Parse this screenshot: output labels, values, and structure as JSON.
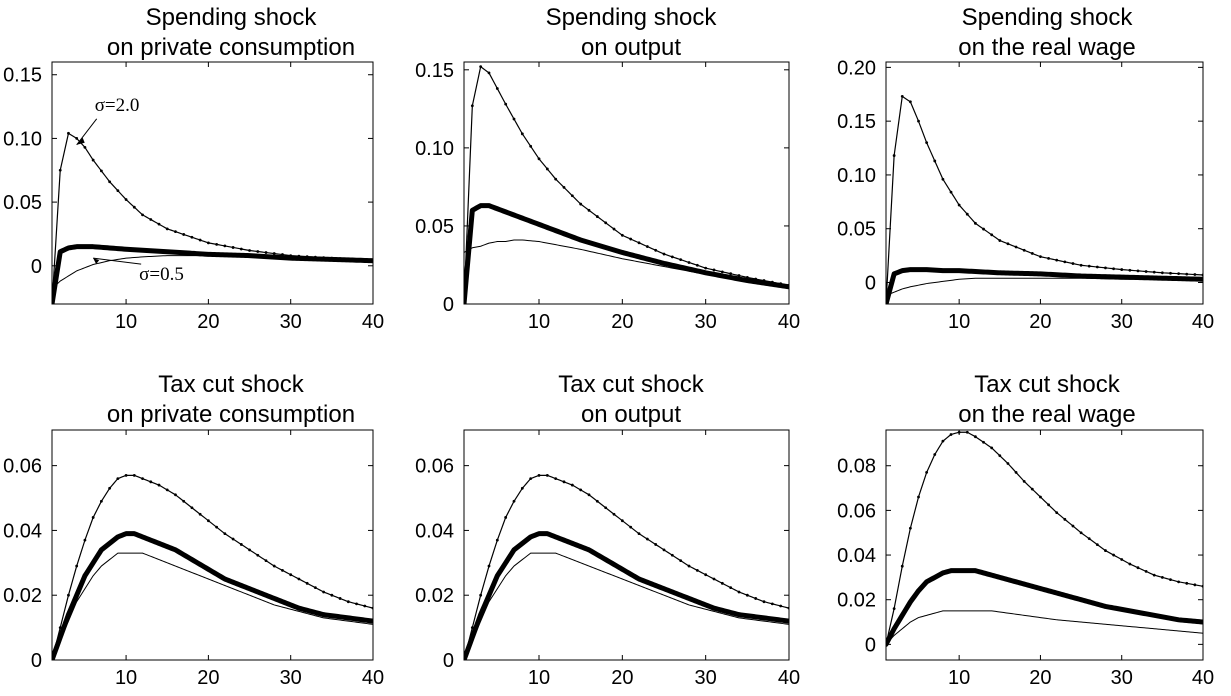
{
  "figure": {
    "line_color": "#000000",
    "background": "#ffffff"
  },
  "chart_data": [
    {
      "type": "line",
      "title_line1": "Spending shock",
      "title_line2": "on private consumption",
      "xlabel": "",
      "ylabel": "",
      "xlim": [
        1,
        40
      ],
      "ylim": [
        -0.03,
        0.16
      ],
      "xticks": [
        10,
        20,
        30,
        40
      ],
      "xtick_labels": [
        "10",
        "20",
        "30",
        "40"
      ],
      "yticks": [
        0,
        0.05,
        0.1,
        0.15
      ],
      "ytick_labels": [
        "0",
        "0.05",
        "0.10",
        "0.15"
      ],
      "grid": false,
      "annotations": [
        {
          "text": "σ=2.0",
          "series": "dotted",
          "x": 4,
          "y": 0.095
        },
        {
          "text": "σ=0.5",
          "series": "thin",
          "x": 6,
          "y": 0.006
        }
      ],
      "series": [
        {
          "style": "dotted",
          "x": [
            1,
            2,
            3,
            4,
            5,
            6,
            8,
            10,
            12,
            15,
            20,
            25,
            30,
            35,
            40
          ],
          "y": [
            -0.03,
            0.075,
            0.104,
            0.1,
            0.093,
            0.083,
            0.066,
            0.052,
            0.04,
            0.029,
            0.018,
            0.012,
            0.008,
            0.006,
            0.004
          ]
        },
        {
          "style": "thick",
          "x": [
            1,
            2,
            3,
            4,
            5,
            6,
            8,
            10,
            15,
            20,
            25,
            30,
            35,
            40
          ],
          "y": [
            -0.03,
            0.011,
            0.014,
            0.015,
            0.015,
            0.015,
            0.014,
            0.013,
            0.011,
            0.009,
            0.008,
            0.006,
            0.005,
            0.004
          ]
        },
        {
          "style": "thin",
          "x": [
            1,
            2,
            4,
            6,
            8,
            10,
            12,
            15,
            20,
            25,
            30,
            35,
            40
          ],
          "y": [
            -0.018,
            -0.012,
            -0.004,
            0.001,
            0.004,
            0.006,
            0.007,
            0.008,
            0.008,
            0.007,
            0.006,
            0.005,
            0.004
          ]
        }
      ]
    },
    {
      "type": "line",
      "title_line1": "Spending shock",
      "title_line2": "on output",
      "xlabel": "",
      "ylabel": "",
      "xlim": [
        1,
        40
      ],
      "ylim": [
        0,
        0.155
      ],
      "xticks": [
        10,
        20,
        30,
        40
      ],
      "xtick_labels": [
        "10",
        "20",
        "30",
        "40"
      ],
      "yticks": [
        0,
        0.05,
        0.1,
        0.15
      ],
      "ytick_labels": [
        "0",
        "0.05",
        "0.10",
        "0.15"
      ],
      "grid": false,
      "annotations": [],
      "series": [
        {
          "style": "dotted",
          "x": [
            1,
            2,
            3,
            4,
            5,
            6,
            8,
            10,
            12,
            15,
            20,
            25,
            30,
            35,
            40
          ],
          "y": [
            0,
            0.127,
            0.152,
            0.148,
            0.138,
            0.128,
            0.109,
            0.093,
            0.08,
            0.064,
            0.044,
            0.032,
            0.023,
            0.017,
            0.012
          ]
        },
        {
          "style": "thick",
          "x": [
            1,
            2,
            3,
            4,
            5,
            6,
            8,
            10,
            12,
            15,
            20,
            25,
            30,
            35,
            40
          ],
          "y": [
            0,
            0.06,
            0.063,
            0.063,
            0.061,
            0.059,
            0.055,
            0.051,
            0.047,
            0.041,
            0.033,
            0.026,
            0.02,
            0.015,
            0.011
          ]
        },
        {
          "style": "thin",
          "x": [
            1,
            2,
            3,
            4,
            5,
            6,
            7,
            8,
            10,
            12,
            15,
            20,
            25,
            30,
            35,
            40
          ],
          "y": [
            0.033,
            0.036,
            0.037,
            0.039,
            0.04,
            0.04,
            0.041,
            0.041,
            0.04,
            0.038,
            0.035,
            0.029,
            0.024,
            0.019,
            0.015,
            0.012
          ]
        }
      ]
    },
    {
      "type": "line",
      "title_line1": "Spending shock",
      "title_line2": "on the real wage",
      "xlabel": "",
      "ylabel": "",
      "xlim": [
        1,
        40
      ],
      "ylim": [
        -0.02,
        0.205
      ],
      "xticks": [
        10,
        20,
        30,
        40
      ],
      "xtick_labels": [
        "10",
        "20",
        "30",
        "40"
      ],
      "yticks": [
        0,
        0.05,
        0.1,
        0.15,
        0.2
      ],
      "ytick_labels": [
        "0",
        "0.05",
        "0.10",
        "0.15",
        "0.20"
      ],
      "grid": false,
      "annotations": [],
      "series": [
        {
          "style": "dotted",
          "x": [
            1,
            2,
            3,
            4,
            5,
            6,
            8,
            10,
            12,
            15,
            20,
            25,
            30,
            35,
            40
          ],
          "y": [
            -0.02,
            0.118,
            0.173,
            0.168,
            0.15,
            0.13,
            0.096,
            0.072,
            0.055,
            0.039,
            0.024,
            0.016,
            0.012,
            0.009,
            0.007
          ]
        },
        {
          "style": "thick",
          "x": [
            1,
            2,
            3,
            4,
            5,
            6,
            8,
            10,
            15,
            20,
            25,
            30,
            35,
            40
          ],
          "y": [
            -0.02,
            0.008,
            0.011,
            0.012,
            0.012,
            0.012,
            0.011,
            0.011,
            0.009,
            0.008,
            0.006,
            0.005,
            0.004,
            0.003
          ]
        },
        {
          "style": "thin",
          "x": [
            1,
            2,
            3,
            4,
            6,
            8,
            10,
            12,
            15,
            20,
            25,
            30,
            35,
            40
          ],
          "y": [
            -0.012,
            -0.009,
            -0.006,
            -0.004,
            -0.001,
            0.001,
            0.003,
            0.004,
            0.004,
            0.004,
            0.004,
            0.003,
            0.003,
            0.002
          ]
        }
      ]
    },
    {
      "type": "line",
      "title_line1": "Tax cut shock",
      "title_line2": "on private consumption",
      "xlabel": "",
      "ylabel": "",
      "xlim": [
        1,
        40
      ],
      "ylim": [
        0,
        0.071
      ],
      "xticks": [
        10,
        20,
        30,
        40
      ],
      "xtick_labels": [
        "10",
        "20",
        "30",
        "40"
      ],
      "yticks": [
        0,
        0.02,
        0.04,
        0.06
      ],
      "ytick_labels": [
        "0",
        "0.02",
        "0.04",
        "0.06"
      ],
      "grid": false,
      "annotations": [],
      "series": [
        {
          "style": "dotted",
          "x": [
            1,
            2,
            3,
            4,
            5,
            6,
            7,
            8,
            9,
            10,
            11,
            12,
            14,
            16,
            18,
            20,
            22,
            25,
            28,
            31,
            34,
            37,
            40
          ],
          "y": [
            0,
            0.01,
            0.02,
            0.029,
            0.037,
            0.044,
            0.049,
            0.053,
            0.056,
            0.057,
            0.057,
            0.056,
            0.054,
            0.051,
            0.047,
            0.043,
            0.039,
            0.034,
            0.029,
            0.025,
            0.021,
            0.018,
            0.016
          ]
        },
        {
          "style": "thick",
          "x": [
            1,
            2,
            3,
            4,
            5,
            6,
            7,
            8,
            9,
            10,
            11,
            12,
            14,
            16,
            18,
            20,
            22,
            25,
            28,
            31,
            34,
            37,
            40
          ],
          "y": [
            0,
            0.007,
            0.014,
            0.02,
            0.026,
            0.03,
            0.034,
            0.036,
            0.038,
            0.039,
            0.039,
            0.038,
            0.036,
            0.034,
            0.031,
            0.028,
            0.025,
            0.022,
            0.019,
            0.016,
            0.014,
            0.013,
            0.012
          ]
        },
        {
          "style": "thin",
          "x": [
            1,
            2,
            3,
            4,
            5,
            6,
            7,
            8,
            9,
            10,
            11,
            12,
            14,
            16,
            18,
            20,
            22,
            25,
            28,
            31,
            34,
            37,
            40
          ],
          "y": [
            0,
            0.006,
            0.012,
            0.018,
            0.022,
            0.026,
            0.029,
            0.031,
            0.033,
            0.033,
            0.033,
            0.033,
            0.031,
            0.029,
            0.027,
            0.025,
            0.023,
            0.02,
            0.017,
            0.015,
            0.013,
            0.012,
            0.011
          ]
        }
      ]
    },
    {
      "type": "line",
      "title_line1": "Tax cut shock",
      "title_line2": "on output",
      "xlabel": "",
      "ylabel": "",
      "xlim": [
        1,
        40
      ],
      "ylim": [
        0,
        0.071
      ],
      "xticks": [
        10,
        20,
        30,
        40
      ],
      "xtick_labels": [
        "10",
        "20",
        "30",
        "40"
      ],
      "yticks": [
        0,
        0.02,
        0.04,
        0.06
      ],
      "ytick_labels": [
        "0",
        "0.02",
        "0.04",
        "0.06"
      ],
      "grid": false,
      "annotations": [],
      "series": [
        {
          "style": "dotted",
          "x": [
            1,
            2,
            3,
            4,
            5,
            6,
            7,
            8,
            9,
            10,
            11,
            12,
            14,
            16,
            18,
            20,
            22,
            25,
            28,
            31,
            34,
            37,
            40
          ],
          "y": [
            0,
            0.01,
            0.02,
            0.029,
            0.037,
            0.044,
            0.049,
            0.053,
            0.056,
            0.057,
            0.057,
            0.056,
            0.054,
            0.051,
            0.047,
            0.043,
            0.039,
            0.034,
            0.029,
            0.025,
            0.021,
            0.018,
            0.016
          ]
        },
        {
          "style": "thick",
          "x": [
            1,
            2,
            3,
            4,
            5,
            6,
            7,
            8,
            9,
            10,
            11,
            12,
            14,
            16,
            18,
            20,
            22,
            25,
            28,
            31,
            34,
            37,
            40
          ],
          "y": [
            0,
            0.007,
            0.014,
            0.02,
            0.026,
            0.03,
            0.034,
            0.036,
            0.038,
            0.039,
            0.039,
            0.038,
            0.036,
            0.034,
            0.031,
            0.028,
            0.025,
            0.022,
            0.019,
            0.016,
            0.014,
            0.013,
            0.012
          ]
        },
        {
          "style": "thin",
          "x": [
            1,
            2,
            3,
            4,
            5,
            6,
            7,
            8,
            9,
            10,
            11,
            12,
            14,
            16,
            18,
            20,
            22,
            25,
            28,
            31,
            34,
            37,
            40
          ],
          "y": [
            0,
            0.006,
            0.012,
            0.018,
            0.022,
            0.026,
            0.029,
            0.031,
            0.033,
            0.033,
            0.033,
            0.033,
            0.031,
            0.029,
            0.027,
            0.025,
            0.023,
            0.02,
            0.017,
            0.015,
            0.013,
            0.012,
            0.011
          ]
        }
      ]
    },
    {
      "type": "line",
      "title_line1": "Tax cut shock",
      "title_line2": "on the real wage",
      "xlabel": "",
      "ylabel": "",
      "xlim": [
        1,
        40
      ],
      "ylim": [
        -0.007,
        0.096
      ],
      "xticks": [
        10,
        20,
        30,
        40
      ],
      "xtick_labels": [
        "10",
        "20",
        "30",
        "40"
      ],
      "yticks": [
        0,
        0.02,
        0.04,
        0.06,
        0.08
      ],
      "ytick_labels": [
        "0",
        "0.02",
        "0.04",
        "0.06",
        "0.08"
      ],
      "grid": false,
      "annotations": [],
      "series": [
        {
          "style": "dotted",
          "x": [
            1,
            2,
            3,
            4,
            5,
            6,
            7,
            8,
            9,
            10,
            11,
            12,
            14,
            16,
            18,
            20,
            22,
            25,
            28,
            31,
            34,
            37,
            40
          ],
          "y": [
            0,
            0.016,
            0.035,
            0.052,
            0.066,
            0.077,
            0.085,
            0.091,
            0.094,
            0.095,
            0.095,
            0.093,
            0.088,
            0.081,
            0.073,
            0.066,
            0.059,
            0.05,
            0.042,
            0.036,
            0.031,
            0.028,
            0.026
          ]
        },
        {
          "style": "thick",
          "x": [
            1,
            2,
            3,
            4,
            5,
            6,
            7,
            8,
            9,
            10,
            11,
            12,
            14,
            16,
            18,
            20,
            22,
            25,
            28,
            31,
            34,
            37,
            40
          ],
          "y": [
            0,
            0.007,
            0.013,
            0.019,
            0.024,
            0.028,
            0.03,
            0.032,
            0.033,
            0.033,
            0.033,
            0.033,
            0.031,
            0.029,
            0.027,
            0.025,
            0.023,
            0.02,
            0.017,
            0.015,
            0.013,
            0.011,
            0.01
          ]
        },
        {
          "style": "thin",
          "x": [
            1,
            2,
            3,
            4,
            5,
            6,
            7,
            8,
            9,
            10,
            11,
            12,
            14,
            16,
            18,
            20,
            22,
            25,
            28,
            31,
            34,
            37,
            40
          ],
          "y": [
            0,
            0.004,
            0.007,
            0.01,
            0.012,
            0.013,
            0.014,
            0.015,
            0.015,
            0.015,
            0.015,
            0.015,
            0.015,
            0.014,
            0.013,
            0.012,
            0.011,
            0.01,
            0.009,
            0.008,
            0.007,
            0.006,
            0.005
          ]
        }
      ]
    }
  ]
}
